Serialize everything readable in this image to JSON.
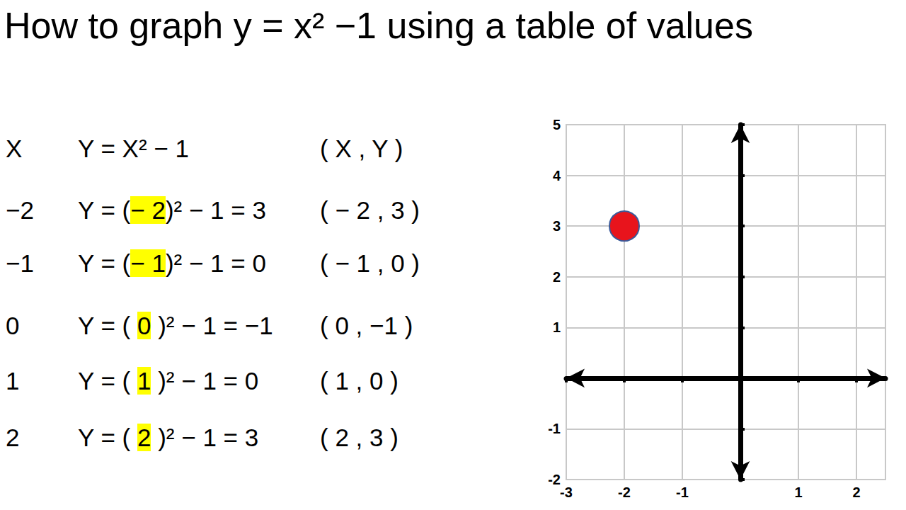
{
  "title": "How to graph y = x² −1 using a table of values",
  "table": {
    "header": [
      "X",
      "Y = X² − 1",
      "( X , Y )"
    ],
    "rows": [
      {
        "x": "−2",
        "formula": {
          "before": "Y = (",
          "highlight": "− 2",
          "after": ")² − 1 = 3"
        },
        "pair": "( − 2 , 3 )"
      },
      {
        "x": "−1",
        "formula": {
          "before": "Y = (",
          "highlight": "− 1",
          "after": ")² − 1 = 0"
        },
        "pair": "( − 1 , 0 )"
      },
      {
        "x": "0",
        "formula": {
          "before": "Y = ( ",
          "highlight": "0",
          "after": " )² − 1 = −1"
        },
        "pair": "( 0 , −1 )"
      },
      {
        "x": "1",
        "formula": {
          "before": "Y = ( ",
          "highlight": "1",
          "after": " )² − 1 = 0"
        },
        "pair": "( 1 , 0 )"
      },
      {
        "x": "2",
        "formula": {
          "before": "Y = ( ",
          "highlight": "2",
          "after": " )² − 1 = 3"
        },
        "pair": "( 2 , 3 )"
      }
    ]
  },
  "chart_data": {
    "type": "scatter",
    "x": [
      -2
    ],
    "values": [
      3
    ],
    "color": "#e8141c",
    "marker": "circle",
    "xlim": [
      -3,
      2.5
    ],
    "ylim": [
      -2,
      5
    ],
    "xticks": [
      -3,
      -2,
      -1,
      1,
      2
    ],
    "yticks": [
      -2,
      -1,
      1,
      2,
      3,
      4,
      5
    ],
    "grid": true
  }
}
